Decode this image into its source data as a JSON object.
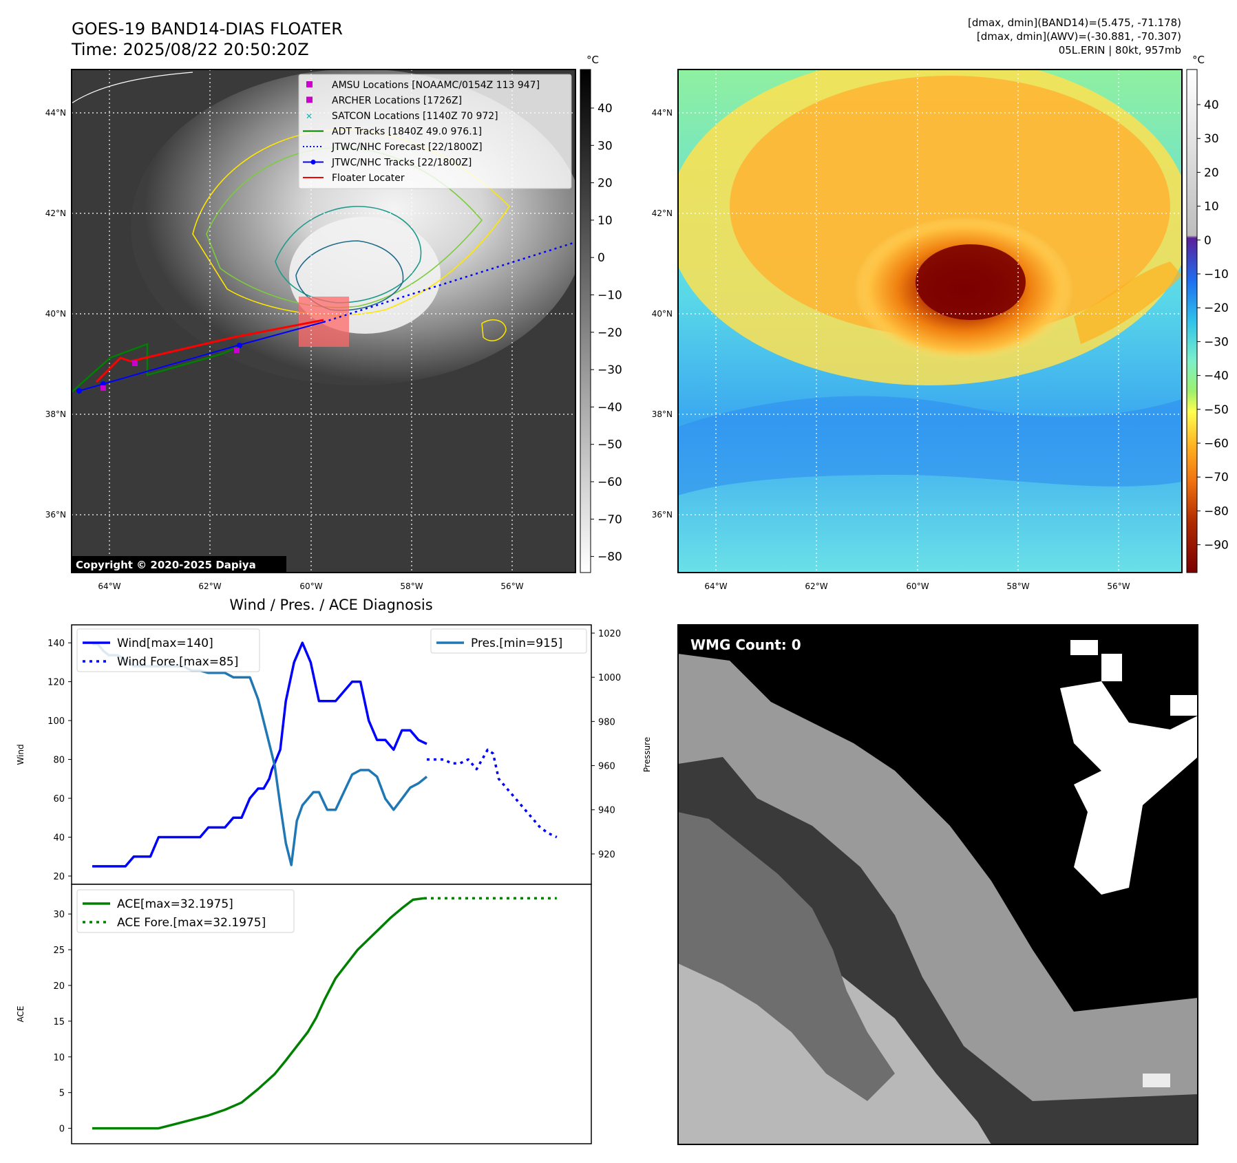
{
  "header": {
    "title_line1": "GOES-19 BAND14-DIAS FLOATER",
    "title_line2": "Time: 2025/08/22 20:50:20Z",
    "stats_line1": "[dmax, dmin](BAND14)=(5.475, -71.178)",
    "stats_line2": "[dmax, dmin](AWV)=(-30.881, -70.307)",
    "stats_line3": "05L.ERIN | 80kt, 957mb"
  },
  "map": {
    "lat_labels": [
      "44°N",
      "42°N",
      "40°N",
      "38°N",
      "36°N"
    ],
    "lon_labels": [
      "64°W",
      "62°W",
      "60°W",
      "58°W",
      "56°W"
    ],
    "copyright": "Copyright © 2020-2025 Dapiya",
    "legend": [
      {
        "label": "AMSU Locations [NOAAMC/0154Z 113 947]",
        "color": "#cc00cc",
        "kind": "square"
      },
      {
        "label": "ARCHER Locations [1726Z]",
        "color": "#cc00cc",
        "kind": "square"
      },
      {
        "label": "SATCON Locations [1140Z 70 972]",
        "color": "#00bbbb",
        "kind": "x"
      },
      {
        "label": "ADT Tracks [1840Z 49.0 976.1]",
        "color": "#008000",
        "kind": "line"
      },
      {
        "label": "JTWC/NHC Forecast [22/1800Z]",
        "color": "#0000ff",
        "kind": "dotted"
      },
      {
        "label": "JTWC/NHC Tracks [22/1800Z]",
        "color": "#0000ff",
        "kind": "linedot"
      },
      {
        "label": "Floater Locater",
        "color": "#ff0000",
        "kind": "line"
      }
    ],
    "gray_colorbar": {
      "unit": "°C",
      "ticks": [
        "40",
        "30",
        "20",
        "10",
        "0",
        "−10",
        "−20",
        "−30",
        "−40",
        "−50",
        "−60",
        "−70",
        "−80"
      ]
    },
    "color_colorbar": {
      "unit": "°C",
      "ticks": [
        "40",
        "30",
        "20",
        "10",
        "0",
        "−10",
        "−20",
        "−30",
        "−40",
        "−50",
        "−60",
        "−70",
        "−80",
        "−90"
      ]
    }
  },
  "chart_title": "Wind / Pres. / ACE Diagnosis",
  "chart_data": [
    {
      "type": "line",
      "ylabel": "Wind",
      "y2label": "Pressure",
      "ylim": [
        20,
        145
      ],
      "y2lim": [
        910,
        1020
      ],
      "yticks": [
        "140",
        "120",
        "100",
        "80",
        "60",
        "40",
        "20"
      ],
      "y2ticks": [
        "1020",
        "1000",
        "980",
        "960",
        "940",
        "920"
      ],
      "legend_left": [
        "Wind[max=140]",
        "Wind Fore.[max=85]"
      ],
      "legend_right": [
        "Pres.[min=915]"
      ],
      "series": [
        {
          "name": "Wind[max=140]",
          "color": "#0000ff",
          "style": "solid",
          "x": [
            0,
            3,
            6,
            9,
            12,
            15,
            18,
            21,
            24,
            27,
            30,
            33,
            36,
            39,
            42,
            45,
            48,
            51,
            54,
            57,
            60,
            62,
            64,
            65,
            66,
            68,
            70,
            73,
            76,
            79,
            82,
            85,
            88,
            91,
            94,
            97,
            100,
            103,
            106,
            109,
            112,
            115,
            118,
            121
          ],
          "values": [
            25,
            25,
            25,
            25,
            25,
            30,
            30,
            30,
            40,
            40,
            40,
            40,
            40,
            40,
            45,
            45,
            45,
            50,
            50,
            60,
            65,
            65,
            70,
            75,
            78,
            85,
            110,
            130,
            140,
            130,
            110,
            110,
            110,
            115,
            120,
            120,
            100,
            90,
            90,
            85,
            95,
            95,
            90,
            88
          ]
        },
        {
          "name": "Wind Fore.[max=85]",
          "color": "#0000ff",
          "style": "dotted",
          "x": [
            121,
            124,
            127,
            130,
            133,
            136,
            139,
            141,
            143,
            145,
            147,
            150,
            153,
            156,
            159,
            162,
            165,
            168
          ],
          "values": [
            80,
            80,
            80,
            78,
            78,
            80,
            75,
            80,
            85,
            83,
            70,
            65,
            60,
            55,
            50,
            45,
            42,
            40
          ]
        },
        {
          "name": "Pres.[min=915]",
          "color": "#1f77b4",
          "style": "solid",
          "axis": "right",
          "x": [
            0,
            2,
            4,
            6,
            9,
            12,
            15,
            18,
            21,
            24,
            27,
            30,
            33,
            36,
            39,
            42,
            45,
            48,
            51,
            54,
            57,
            60,
            63,
            66,
            68,
            70,
            72,
            74,
            76,
            78,
            80,
            82,
            85,
            88,
            91,
            94,
            97,
            100,
            103,
            106,
            109,
            112,
            115,
            118,
            121
          ],
          "values": [
            1015,
            1015,
            1012,
            1010,
            1010,
            1008,
            1005,
            1005,
            1005,
            1005,
            1005,
            1005,
            1005,
            1003,
            1003,
            1002,
            1002,
            1002,
            1000,
            1000,
            1000,
            990,
            975,
            960,
            942,
            925,
            915,
            935,
            942,
            945,
            948,
            948,
            940,
            940,
            948,
            956,
            958,
            958,
            955,
            945,
            940,
            945,
            950,
            952,
            955
          ]
        }
      ]
    },
    {
      "type": "line",
      "ylabel": "ACE",
      "ylim": [
        -1,
        33
      ],
      "yticks": [
        "30",
        "25",
        "20",
        "15",
        "10",
        "5",
        "0"
      ],
      "legend": [
        "ACE[max=32.1975]",
        "ACE Fore.[max=32.1975]"
      ],
      "series": [
        {
          "name": "ACE[max=32.1975]",
          "color": "#008000",
          "style": "solid",
          "x": [
            0,
            6,
            12,
            18,
            24,
            30,
            36,
            42,
            48,
            54,
            60,
            66,
            70,
            72,
            75,
            78,
            81,
            84,
            88,
            92,
            96,
            100,
            104,
            108,
            112,
            116,
            120
          ],
          "values": [
            0,
            0,
            0,
            0,
            0,
            0.6,
            1.2,
            1.8,
            2.6,
            3.6,
            5.5,
            7.6,
            9.5,
            10.5,
            12,
            13.5,
            15.5,
            18,
            21,
            23,
            25,
            26.5,
            28,
            29.5,
            30.8,
            32,
            32.2
          ]
        },
        {
          "name": "ACE Fore.[max=32.1975]",
          "color": "#008000",
          "style": "dotted",
          "x": [
            120,
            130,
            140,
            150,
            160,
            168
          ],
          "values": [
            32.2,
            32.2,
            32.2,
            32.2,
            32.2,
            32.2
          ]
        }
      ]
    }
  ],
  "wmg": {
    "label": "WMG Count: 0"
  }
}
